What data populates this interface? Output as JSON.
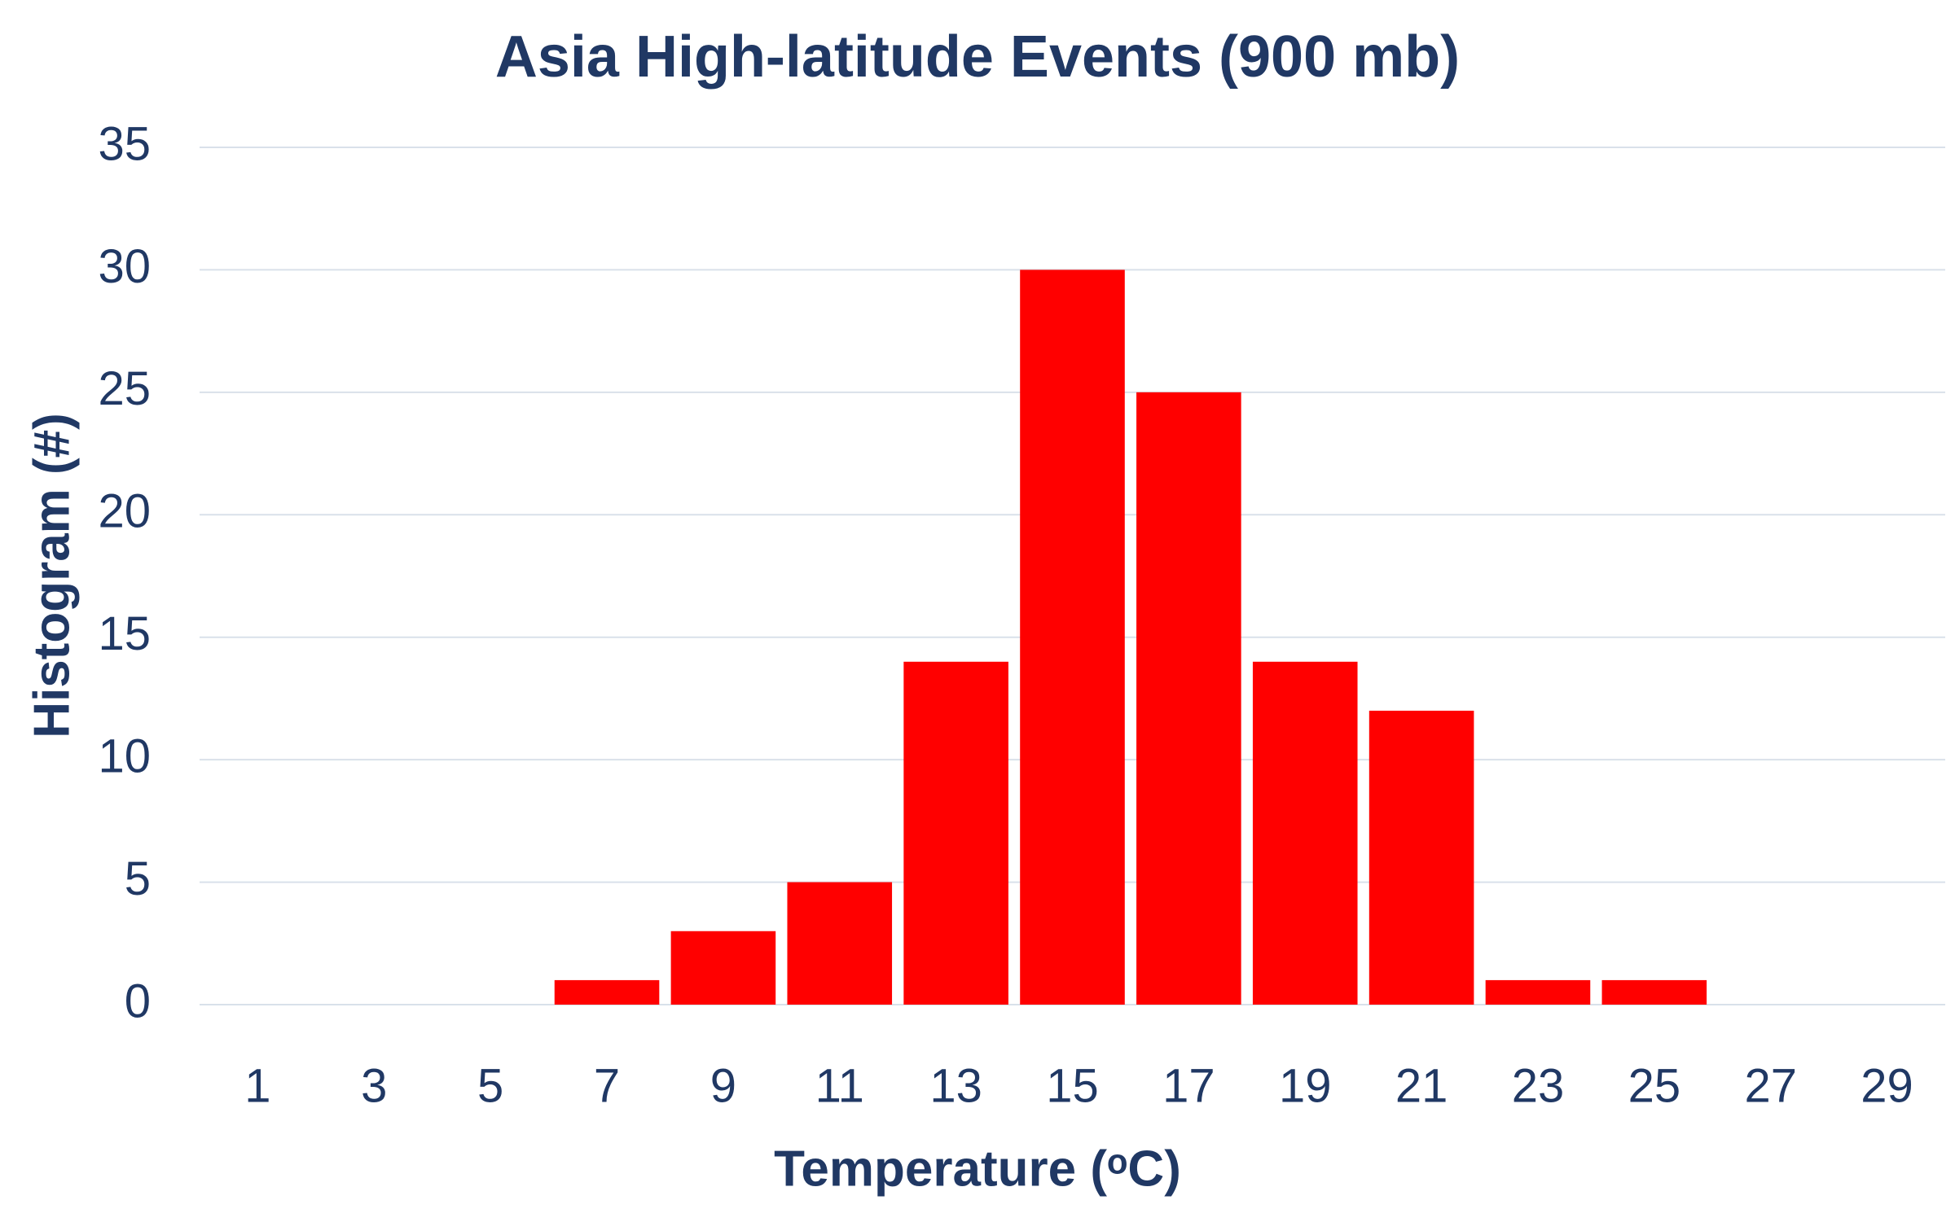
{
  "chart_data": {
    "type": "bar",
    "title": "Asia High-latitude Events (900 mb)",
    "xlabel": "Temperature (ᵒC)",
    "ylabel": "Histogram (#)",
    "categories": [
      "1",
      "3",
      "5",
      "7",
      "9",
      "11",
      "13",
      "15",
      "17",
      "19",
      "21",
      "23",
      "25",
      "27",
      "29"
    ],
    "values": [
      0,
      0,
      0,
      1,
      3,
      5,
      14,
      30,
      25,
      14,
      12,
      1,
      1,
      0,
      0
    ],
    "color": "#ff0000",
    "ylim": [
      0,
      35
    ],
    "yticks": [
      0,
      5,
      10,
      15,
      20,
      25,
      30,
      35
    ],
    "grid": true
  }
}
